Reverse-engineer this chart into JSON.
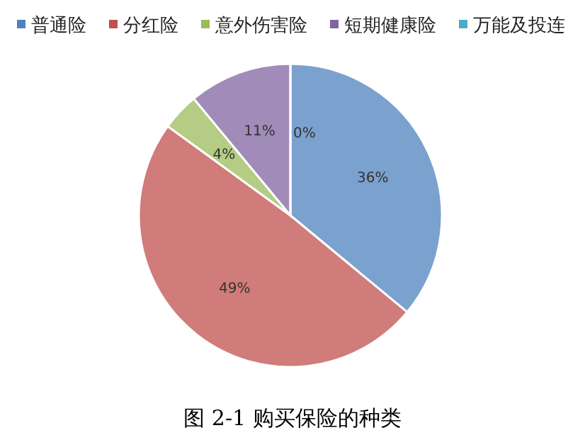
{
  "chart_data": {
    "type": "pie",
    "categories": [
      "普通险",
      "分红险",
      "意外伤害险",
      "短期健康险",
      "万能及投连"
    ],
    "values": [
      36,
      49,
      4,
      11,
      0
    ],
    "value_labels": [
      "36%",
      "49%",
      "4%",
      "11%",
      "0%"
    ],
    "colors": [
      "#4f81bd",
      "#c0504d",
      "#9bbb59",
      "#8064a2",
      "#4bacc6"
    ],
    "legend": "top",
    "annotations": [
      "图 2-1 购买保险的种类"
    ]
  }
}
